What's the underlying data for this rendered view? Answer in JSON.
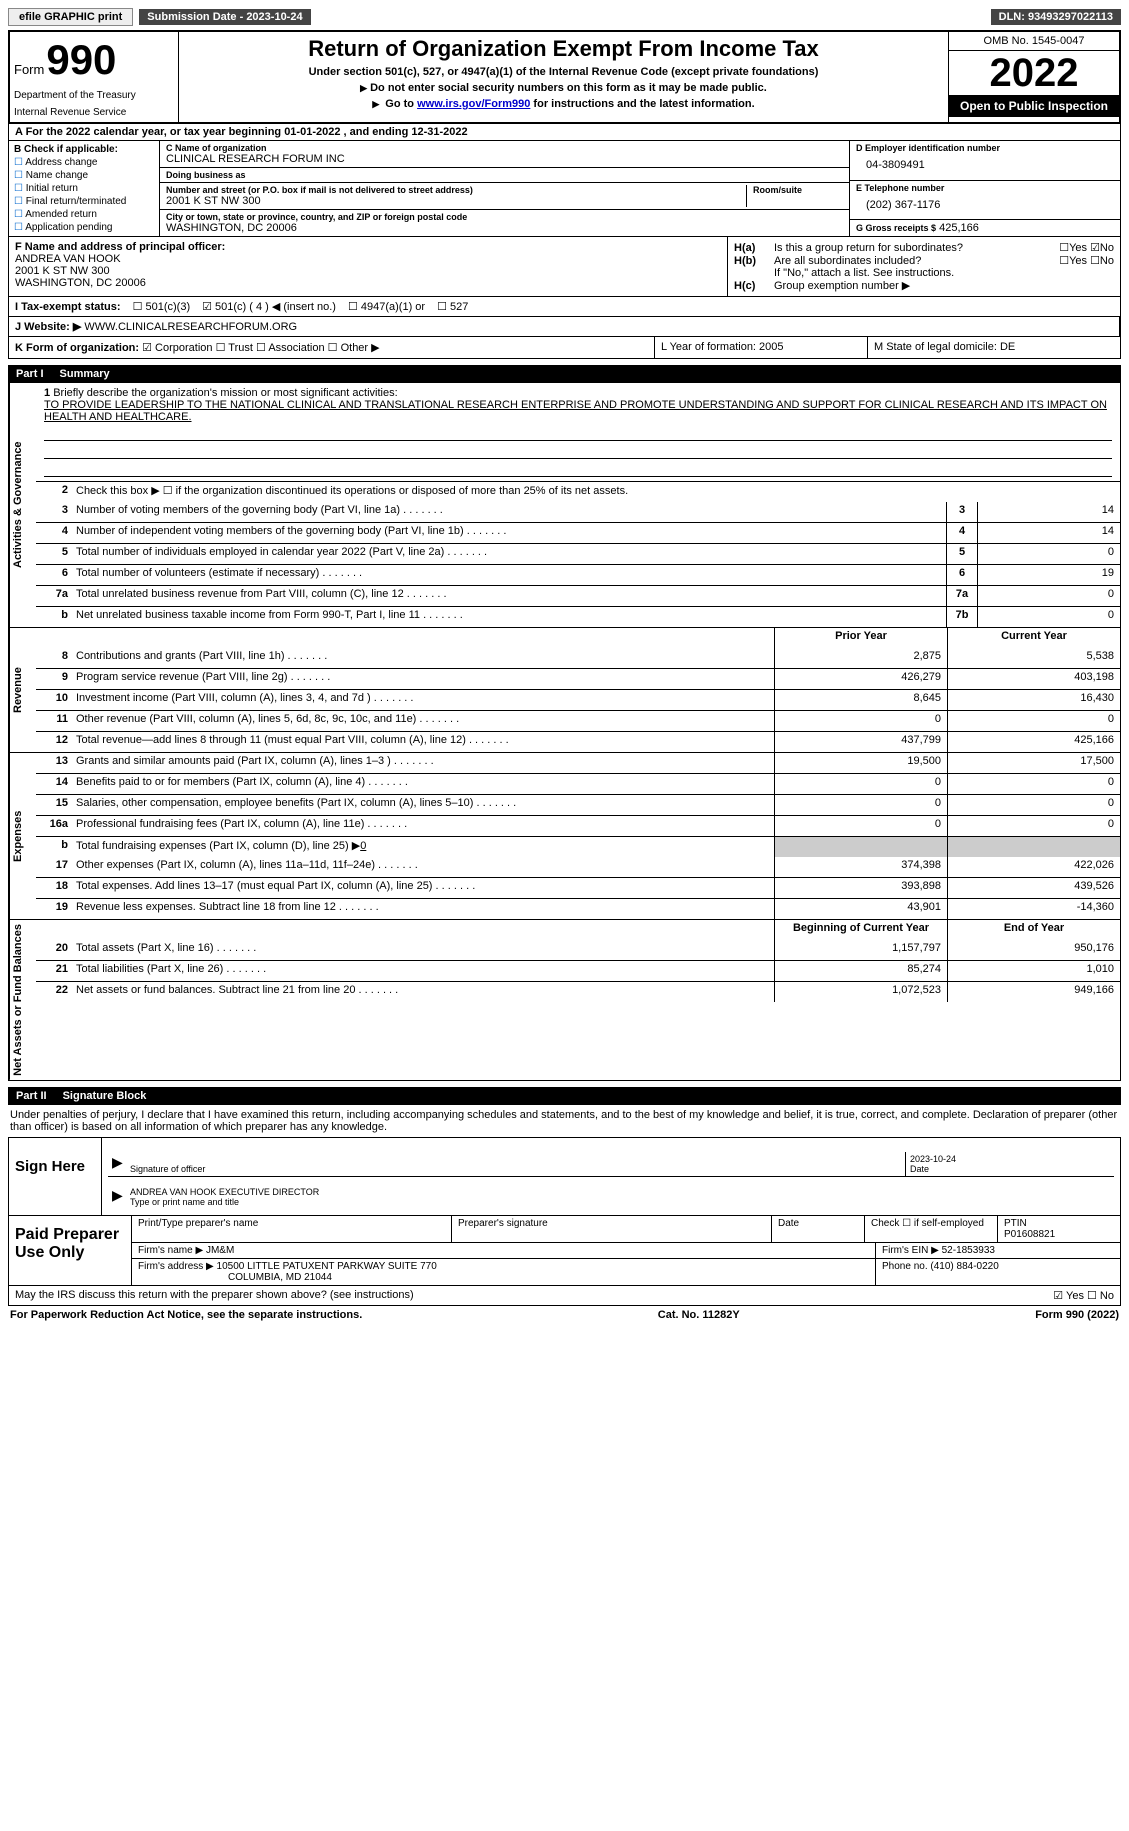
{
  "top": {
    "efile": "efile GRAPHIC print",
    "submission": "Submission Date - 2023-10-24",
    "dln": "DLN: 93493297022113"
  },
  "header": {
    "form_word": "Form",
    "form_number": "990",
    "dept": "Department of the Treasury",
    "irs": "Internal Revenue Service",
    "title": "Return of Organization Exempt From Income Tax",
    "sub1": "Under section 501(c), 527, or 4947(a)(1) of the Internal Revenue Code (except private foundations)",
    "sub2": "Do not enter social security numbers on this form as it may be made public.",
    "sub3_pre": "Go to ",
    "sub3_link": "www.irs.gov/Form990",
    "sub3_post": " for instructions and the latest information.",
    "omb": "OMB No. 1545-0047",
    "year": "2022",
    "open_pub": "Open to Public Inspection"
  },
  "rowA": "A For the 2022 calendar year, or tax year beginning 01-01-2022   , and ending 12-31-2022",
  "colB": {
    "hdr": "B Check if applicable:",
    "items": [
      "Address change",
      "Name change",
      "Initial return",
      "Final return/terminated",
      "Amended return",
      "Application pending"
    ]
  },
  "colC": {
    "name_label": "C Name of organization",
    "name": "CLINICAL RESEARCH FORUM INC",
    "dba_label": "Doing business as",
    "street_label": "Number and street (or P.O. box if mail is not delivered to street address)",
    "room_label": "Room/suite",
    "street": "2001 K ST NW 300",
    "city_label": "City or town, state or province, country, and ZIP or foreign postal code",
    "city": "WASHINGTON, DC  20006"
  },
  "colD": {
    "ein_label": "D Employer identification number",
    "ein": "04-3809491",
    "tel_label": "E Telephone number",
    "tel": "(202) 367-1176",
    "gross_label": "G Gross receipts $",
    "gross": "425,166"
  },
  "rowF": {
    "label": "F Name and address of principal officer:",
    "name": "ANDREA VAN HOOK",
    "addr1": "2001 K ST NW 300",
    "addr2": "WASHINGTON, DC  20006"
  },
  "rowH": {
    "a": "Is this a group return for subordinates?",
    "b": "Are all subordinates included?",
    "note": "If \"No,\" attach a list. See instructions.",
    "c": "Group exemption number ▶"
  },
  "taxI": {
    "label": "I   Tax-exempt status:",
    "o1": "501(c)(3)",
    "o2": "501(c) ( 4 ) ◀ (insert no.)",
    "o3": "4947(a)(1) or",
    "o4": "527"
  },
  "rowJ": {
    "label": "J   Website: ▶",
    "site": "WWW.CLINICALRESEARCHFORUM.ORG"
  },
  "rowK": {
    "label": "K Form of organization:",
    "o1": "Corporation",
    "o2": "Trust",
    "o3": "Association",
    "o4": "Other ▶",
    "L": "L Year of formation: 2005",
    "M": "M State of legal domicile: DE"
  },
  "part1": {
    "tag": "Part I",
    "title": "Summary"
  },
  "mission": {
    "prompt": "Briefly describe the organization's mission or most significant activities:",
    "text": "TO PROVIDE LEADERSHIP TO THE NATIONAL CLINICAL AND TRANSLATIONAL RESEARCH ENTERPRISE AND PROMOTE UNDERSTANDING AND SUPPORT FOR CLINICAL RESEARCH AND ITS IMPACT ON HEALTH AND HEALTHCARE."
  },
  "line2": "Check this box ▶ ☐ if the organization discontinued its operations or disposed of more than 25% of its net assets.",
  "gov_lines": [
    {
      "n": "3",
      "label": "Number of voting members of the governing body (Part VI, line 1a)",
      "box": "3",
      "val": "14"
    },
    {
      "n": "4",
      "label": "Number of independent voting members of the governing body (Part VI, line 1b)",
      "box": "4",
      "val": "14"
    },
    {
      "n": "5",
      "label": "Total number of individuals employed in calendar year 2022 (Part V, line 2a)",
      "box": "5",
      "val": "0"
    },
    {
      "n": "6",
      "label": "Total number of volunteers (estimate if necessary)",
      "box": "6",
      "val": "19"
    },
    {
      "n": "7a",
      "label": "Total unrelated business revenue from Part VIII, column (C), line 12",
      "box": "7a",
      "val": "0"
    },
    {
      "n": "b",
      "label": "Net unrelated business taxable income from Form 990-T, Part I, line 11",
      "box": "7b",
      "val": "0"
    }
  ],
  "col_hdr": {
    "py": "Prior Year",
    "cy": "Current Year"
  },
  "rev_lines": [
    {
      "n": "8",
      "label": "Contributions and grants (Part VIII, line 1h)",
      "py": "2,875",
      "cy": "5,538"
    },
    {
      "n": "9",
      "label": "Program service revenue (Part VIII, line 2g)",
      "py": "426,279",
      "cy": "403,198"
    },
    {
      "n": "10",
      "label": "Investment income (Part VIII, column (A), lines 3, 4, and 7d )",
      "py": "8,645",
      "cy": "16,430"
    },
    {
      "n": "11",
      "label": "Other revenue (Part VIII, column (A), lines 5, 6d, 8c, 9c, 10c, and 11e)",
      "py": "0",
      "cy": "0"
    },
    {
      "n": "12",
      "label": "Total revenue—add lines 8 through 11 (must equal Part VIII, column (A), line 12)",
      "py": "437,799",
      "cy": "425,166"
    }
  ],
  "exp_lines": [
    {
      "n": "13",
      "label": "Grants and similar amounts paid (Part IX, column (A), lines 1–3 )",
      "py": "19,500",
      "cy": "17,500"
    },
    {
      "n": "14",
      "label": "Benefits paid to or for members (Part IX, column (A), line 4)",
      "py": "0",
      "cy": "0"
    },
    {
      "n": "15",
      "label": "Salaries, other compensation, employee benefits (Part IX, column (A), lines 5–10)",
      "py": "0",
      "cy": "0"
    },
    {
      "n": "16a",
      "label": "Professional fundraising fees (Part IX, column (A), line 11e)",
      "py": "0",
      "cy": "0"
    }
  ],
  "line16b": {
    "n": "b",
    "label": "Total fundraising expenses (Part IX, column (D), line 25) ▶",
    "val": "0"
  },
  "exp_lines2": [
    {
      "n": "17",
      "label": "Other expenses (Part IX, column (A), lines 11a–11d, 11f–24e)",
      "py": "374,398",
      "cy": "422,026"
    },
    {
      "n": "18",
      "label": "Total expenses. Add lines 13–17 (must equal Part IX, column (A), line 25)",
      "py": "393,898",
      "cy": "439,526"
    },
    {
      "n": "19",
      "label": "Revenue less expenses. Subtract line 18 from line 12",
      "py": "43,901",
      "cy": "-14,360"
    }
  ],
  "col_hdr2": {
    "py": "Beginning of Current Year",
    "cy": "End of Year"
  },
  "net_lines": [
    {
      "n": "20",
      "label": "Total assets (Part X, line 16)",
      "py": "1,157,797",
      "cy": "950,176"
    },
    {
      "n": "21",
      "label": "Total liabilities (Part X, line 26)",
      "py": "85,274",
      "cy": "1,010"
    },
    {
      "n": "22",
      "label": "Net assets or fund balances. Subtract line 21 from line 20",
      "py": "1,072,523",
      "cy": "949,166"
    }
  ],
  "vtabs": {
    "gov": "Activities & Governance",
    "rev": "Revenue",
    "exp": "Expenses",
    "net": "Net Assets or Fund Balances"
  },
  "part2": {
    "tag": "Part II",
    "title": "Signature Block"
  },
  "sig_text": "Under penalties of perjury, I declare that I have examined this return, including accompanying schedules and statements, and to the best of my knowledge and belief, it is true, correct, and complete. Declaration of preparer (other than officer) is based on all information of which preparer has any knowledge.",
  "sig": {
    "here": "Sign Here",
    "sig_label": "Signature of officer",
    "date_label": "Date",
    "date": "2023-10-24",
    "name": "ANDREA VAN HOOK  EXECUTIVE DIRECTOR",
    "name_label": "Type or print name and title"
  },
  "prep": {
    "here": "Paid Preparer Use Only",
    "name_label": "Print/Type preparer's name",
    "sig_label": "Preparer's signature",
    "date_label": "Date",
    "check_label": "Check ☐ if self-employed",
    "ptin_label": "PTIN",
    "ptin": "P01608821",
    "firm_label": "Firm's name   ▶",
    "firm": "JM&M",
    "ein_label": "Firm's EIN ▶",
    "ein": "52-1853933",
    "addr_label": "Firm's address ▶",
    "addr": "10500 LITTLE PATUXENT PARKWAY SUITE 770",
    "addr2": "COLUMBIA, MD  21044",
    "phone_label": "Phone no.",
    "phone": "(410) 884-0220"
  },
  "footer_q": "May the IRS discuss this return with the preparer shown above? (see instructions)",
  "footer": {
    "pra": "For Paperwork Reduction Act Notice, see the separate instructions.",
    "cat": "Cat. No. 11282Y",
    "form": "Form 990 (2022)"
  }
}
